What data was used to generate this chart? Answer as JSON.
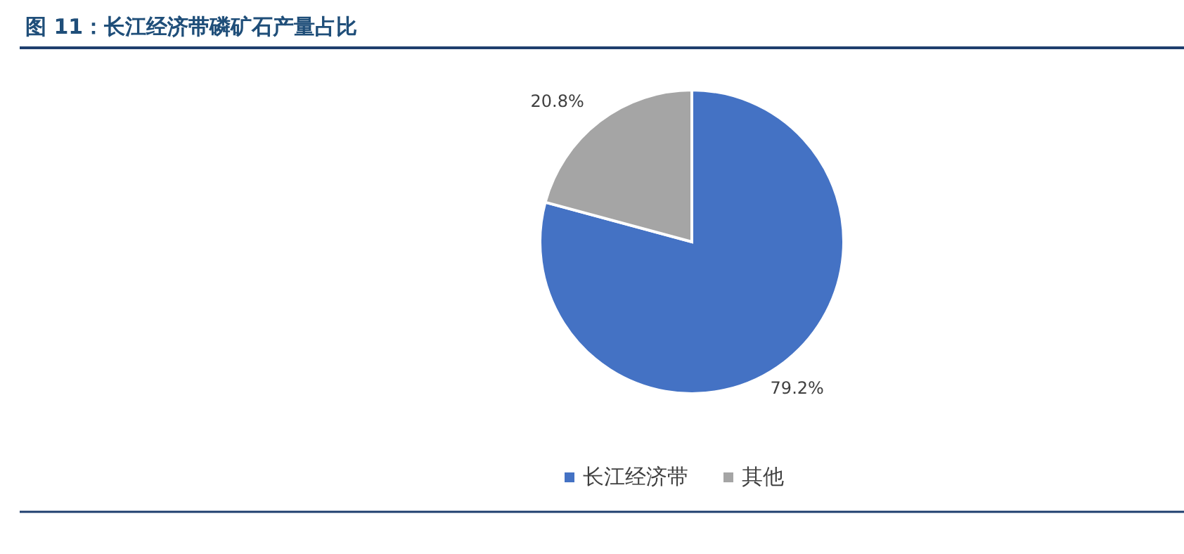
{
  "chart_data": {
    "type": "pie",
    "title": "图 11：长江经济带磷矿石产量占比",
    "categories": [
      "长江经济带",
      "其他"
    ],
    "values": [
      79.2,
      20.8
    ],
    "colors": [
      "#4472c4",
      "#a5a5a5"
    ],
    "value_labels": [
      "79.2%",
      "20.8%"
    ],
    "legend": "bottom"
  }
}
